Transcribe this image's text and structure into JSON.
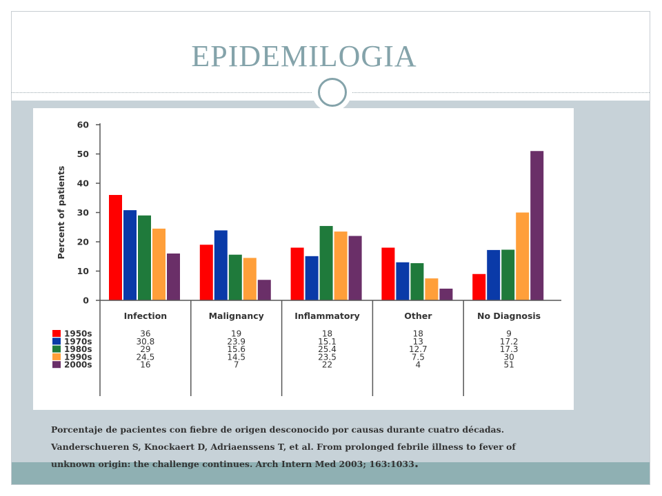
{
  "slide": {
    "title": "EPIDEMILOGIA",
    "caption": {
      "line1": "Porcentaje de pacientes con fiebre de origen desconocido por causas durante cuatro décadas.",
      "line2": "Vanderschueren S, Knockaert D, Adriaenssens T, et al. From prolonged febrile illness to fever of",
      "line3": "unknown origin: the challenge continues. Arch Intern Med 2003; 163:1033",
      "end_mark": "."
    }
  },
  "colors": {
    "accent": "#84a3aa",
    "band_light": "#c7d2d8",
    "band_dark": "#8fb0b3"
  },
  "chart_data": {
    "type": "bar",
    "title": "",
    "xlabel": "",
    "ylabel": "Percent of patients",
    "ylim": [
      0,
      60
    ],
    "yticks": [
      0,
      10,
      20,
      30,
      40,
      50,
      60
    ],
    "grid": false,
    "categories": [
      "Infection",
      "Malignancy",
      "Inflammatory",
      "Other",
      "No Diagnosis"
    ],
    "series": [
      {
        "name": "1950s",
        "color": "#ff0000",
        "values": [
          36,
          19,
          18,
          18,
          9
        ],
        "labels": [
          "36",
          "19",
          "18",
          "18",
          "9"
        ]
      },
      {
        "name": "1970s",
        "color": "#0a3aa8",
        "values": [
          30.8,
          23.9,
          15.1,
          13,
          17.2
        ],
        "labels": [
          "30.8",
          "23.9",
          "15.1",
          "13",
          "17.2"
        ]
      },
      {
        "name": "1980s",
        "color": "#1f7a3b",
        "values": [
          29,
          15.6,
          25.4,
          12.7,
          17.3
        ],
        "labels": [
          "29",
          "15.6",
          "25.4",
          "12.7",
          "17.3"
        ]
      },
      {
        "name": "1990s",
        "color": "#ff9f3a",
        "values": [
          24.5,
          14.5,
          23.5,
          7.5,
          30
        ],
        "labels": [
          "24.5",
          "14.5",
          "23.5",
          "7.5",
          "30"
        ]
      },
      {
        "name": "2000s",
        "color": "#6a2f68",
        "values": [
          16,
          7,
          22,
          4,
          51
        ],
        "labels": [
          "16",
          "7",
          "22",
          "4",
          "51"
        ]
      }
    ]
  }
}
